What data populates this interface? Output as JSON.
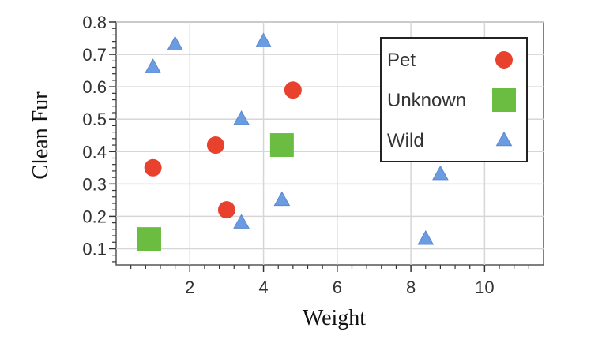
{
  "chart_data": {
    "type": "scatter",
    "xlabel": "Weight",
    "ylabel": "Clean Fur",
    "xlim": [
      0,
      11.6
    ],
    "ylim": [
      0.05,
      0.8
    ],
    "xticks": [
      2,
      4,
      6,
      8,
      10
    ],
    "yticks": [
      0.1,
      0.2,
      0.3,
      0.4,
      0.5,
      0.6,
      0.7,
      0.8
    ],
    "grid": true,
    "legend_position": "top-right",
    "series": [
      {
        "name": "Pet",
        "marker": "circle",
        "color": "#e8412e",
        "points": [
          {
            "x": 1.0,
            "y": 0.35
          },
          {
            "x": 2.7,
            "y": 0.42
          },
          {
            "x": 3.0,
            "y": 0.22
          },
          {
            "x": 4.8,
            "y": 0.59
          }
        ]
      },
      {
        "name": "Unknown",
        "marker": "square",
        "color": "#6bbd42",
        "points": [
          {
            "x": 0.9,
            "y": 0.13
          },
          {
            "x": 4.5,
            "y": 0.42
          }
        ]
      },
      {
        "name": "Wild",
        "marker": "triangle",
        "color": "#6b9be0",
        "points": [
          {
            "x": 1.0,
            "y": 0.66
          },
          {
            "x": 1.6,
            "y": 0.73
          },
          {
            "x": 4.0,
            "y": 0.74
          },
          {
            "x": 3.4,
            "y": 0.5
          },
          {
            "x": 4.5,
            "y": 0.25
          },
          {
            "x": 3.4,
            "y": 0.18
          },
          {
            "x": 8.8,
            "y": 0.33
          },
          {
            "x": 8.4,
            "y": 0.13
          }
        ]
      }
    ]
  }
}
